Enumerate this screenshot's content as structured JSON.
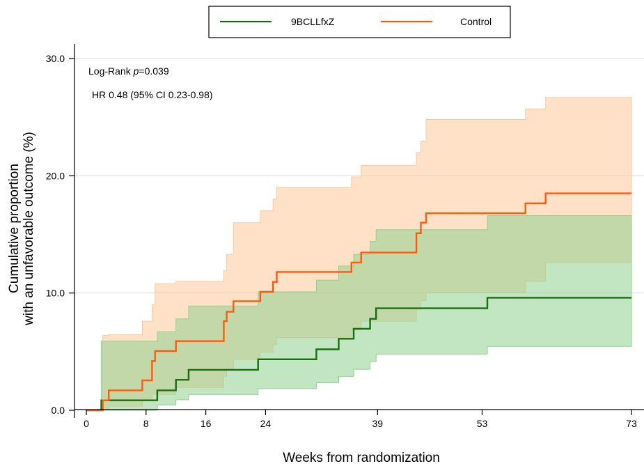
{
  "chart_data": {
    "type": "line",
    "xlabel": "Weeks from randomization",
    "ylabel_line1": "Cumulative proportion",
    "ylabel_line2": "with an unfavorable outcome (%)",
    "xlim": [
      0,
      73
    ],
    "ylim": [
      0,
      30
    ],
    "x_ticks": [
      0,
      8,
      16,
      24,
      39,
      53,
      73
    ],
    "x_tick_labels": [
      "0",
      "8",
      "16",
      "24",
      "39",
      "53",
      "73"
    ],
    "y_ticks": [
      0,
      10,
      20,
      30
    ],
    "y_tick_labels": [
      "0.0",
      "10.0",
      "20.0",
      "30.0"
    ],
    "grid": "horizontal",
    "legend_position": "top",
    "annotations": {
      "logrank_prefix": "Log-Rank ",
      "logrank_p": "p",
      "logrank_value": "=0.039",
      "hr": "HR 0.48 (95% CI 0.23-0.98)"
    },
    "series": [
      {
        "name": "9BCLLfxZ",
        "color": "#1a6e12",
        "band_color": "#8fd18f",
        "points": [
          [
            0,
            0
          ],
          [
            2,
            0
          ],
          [
            2,
            0.85
          ],
          [
            9.5,
            0.85
          ],
          [
            9.5,
            1.7
          ],
          [
            12,
            1.7
          ],
          [
            12,
            2.6
          ],
          [
            13.7,
            2.6
          ],
          [
            13.7,
            3.45
          ],
          [
            23,
            3.45
          ],
          [
            23,
            4.35
          ],
          [
            30.8,
            4.35
          ],
          [
            30.8,
            5.2
          ],
          [
            33.8,
            5.2
          ],
          [
            33.8,
            6.1
          ],
          [
            35.8,
            6.1
          ],
          [
            35.8,
            6.95
          ],
          [
            38,
            6.95
          ],
          [
            38,
            7.8
          ],
          [
            38.8,
            7.8
          ],
          [
            38.8,
            8.7
          ],
          [
            53.7,
            8.7
          ],
          [
            53.7,
            9.6
          ],
          [
            73,
            9.6
          ]
        ],
        "lower": [
          [
            2,
            0
          ],
          [
            9.5,
            0
          ],
          [
            9.5,
            0.45
          ],
          [
            12,
            0.45
          ],
          [
            12,
            0.9
          ],
          [
            13.7,
            0.9
          ],
          [
            13.7,
            1.35
          ],
          [
            23,
            1.35
          ],
          [
            23,
            1.85
          ],
          [
            30.8,
            1.85
          ],
          [
            30.8,
            2.35
          ],
          [
            33.8,
            2.35
          ],
          [
            33.8,
            2.9
          ],
          [
            35.8,
            2.9
          ],
          [
            35.8,
            3.5
          ],
          [
            38,
            3.5
          ],
          [
            38,
            4.15
          ],
          [
            38.8,
            4.15
          ],
          [
            38.8,
            4.8
          ],
          [
            53.7,
            4.8
          ],
          [
            53.7,
            5.45
          ],
          [
            73,
            5.45
          ]
        ],
        "upper": [
          [
            2,
            5.9
          ],
          [
            9.5,
            5.9
          ],
          [
            9.5,
            6.7
          ],
          [
            12,
            6.7
          ],
          [
            12,
            7.8
          ],
          [
            13.7,
            7.8
          ],
          [
            13.7,
            8.9
          ],
          [
            23,
            8.9
          ],
          [
            23,
            10.1
          ],
          [
            30.8,
            10.1
          ],
          [
            30.8,
            11.1
          ],
          [
            33.8,
            11.1
          ],
          [
            33.8,
            12.3
          ],
          [
            35.8,
            12.3
          ],
          [
            35.8,
            13.3
          ],
          [
            38,
            13.3
          ],
          [
            38,
            14.4
          ],
          [
            38.8,
            14.4
          ],
          [
            38.8,
            15.4
          ],
          [
            53.7,
            15.4
          ],
          [
            53.7,
            16.6
          ],
          [
            73,
            16.6
          ]
        ]
      },
      {
        "name": "Control",
        "color": "#ff5a0a",
        "band_color": "#ffc99a",
        "points": [
          [
            0,
            0
          ],
          [
            2.2,
            0
          ],
          [
            2.2,
            0.85
          ],
          [
            3,
            0.85
          ],
          [
            3,
            1.7
          ],
          [
            7.5,
            1.7
          ],
          [
            7.5,
            2.55
          ],
          [
            8.8,
            2.55
          ],
          [
            8.8,
            4.2
          ],
          [
            9.2,
            4.2
          ],
          [
            9.2,
            5.05
          ],
          [
            12,
            5.05
          ],
          [
            12,
            5.9
          ],
          [
            18.4,
            5.9
          ],
          [
            18.4,
            7.6
          ],
          [
            18.8,
            7.6
          ],
          [
            18.8,
            8.4
          ],
          [
            19.7,
            8.4
          ],
          [
            19.7,
            9.3
          ],
          [
            23.3,
            9.3
          ],
          [
            23.3,
            10.1
          ],
          [
            25,
            10.1
          ],
          [
            25,
            10.95
          ],
          [
            25.5,
            10.95
          ],
          [
            25.5,
            11.8
          ],
          [
            35.5,
            11.8
          ],
          [
            35.5,
            12.6
          ],
          [
            36.8,
            12.6
          ],
          [
            36.8,
            13.45
          ],
          [
            44.2,
            13.45
          ],
          [
            44.2,
            15.1
          ],
          [
            44.8,
            15.1
          ],
          [
            44.8,
            16.0
          ],
          [
            45.5,
            16.0
          ],
          [
            45.5,
            16.8
          ],
          [
            58.8,
            16.8
          ],
          [
            58.8,
            17.65
          ],
          [
            61.5,
            17.65
          ],
          [
            61.5,
            18.5
          ],
          [
            73,
            18.5
          ]
        ],
        "lower": [
          [
            2.2,
            0
          ],
          [
            3,
            0
          ],
          [
            3,
            0.35
          ],
          [
            7.5,
            0.35
          ],
          [
            7.5,
            0.8
          ],
          [
            8.8,
            0.8
          ],
          [
            8.8,
            1.35
          ],
          [
            12,
            1.35
          ],
          [
            12,
            1.95
          ],
          [
            18.4,
            1.95
          ],
          [
            18.4,
            2.9
          ],
          [
            18.8,
            2.9
          ],
          [
            18.8,
            3.55
          ],
          [
            19.7,
            3.55
          ],
          [
            19.7,
            4.35
          ],
          [
            23.3,
            4.35
          ],
          [
            23.3,
            4.95
          ],
          [
            25,
            4.95
          ],
          [
            25,
            5.6
          ],
          [
            25.5,
            5.6
          ],
          [
            25.5,
            6.2
          ],
          [
            35.5,
            6.2
          ],
          [
            35.5,
            6.85
          ],
          [
            36.8,
            6.85
          ],
          [
            36.8,
            7.6
          ],
          [
            44.2,
            7.6
          ],
          [
            44.2,
            8.6
          ],
          [
            44.8,
            8.6
          ],
          [
            44.8,
            9.35
          ],
          [
            45.5,
            9.35
          ],
          [
            45.5,
            10.05
          ],
          [
            58.8,
            10.05
          ],
          [
            58.8,
            11.0
          ],
          [
            61.5,
            11.0
          ],
          [
            61.5,
            12.6
          ],
          [
            73,
            12.6
          ]
        ],
        "upper": [
          [
            2.2,
            6.4
          ],
          [
            3,
            6.4
          ],
          [
            3,
            6.45
          ],
          [
            7.5,
            6.45
          ],
          [
            7.5,
            7.6
          ],
          [
            8.8,
            7.6
          ],
          [
            8.8,
            9.0
          ],
          [
            9.2,
            9.0
          ],
          [
            9.2,
            10.8
          ],
          [
            12,
            10.8
          ],
          [
            12,
            11.0
          ],
          [
            18.4,
            11.0
          ],
          [
            18.4,
            11.9
          ],
          [
            18.8,
            11.9
          ],
          [
            18.8,
            13.3
          ],
          [
            19.7,
            13.3
          ],
          [
            19.7,
            16.0
          ],
          [
            23.3,
            16.0
          ],
          [
            23.3,
            17.0
          ],
          [
            25,
            17.0
          ],
          [
            25,
            18.0
          ],
          [
            25.5,
            18.0
          ],
          [
            25.5,
            19.0
          ],
          [
            35.5,
            19.0
          ],
          [
            35.5,
            19.9
          ],
          [
            36.8,
            19.9
          ],
          [
            36.8,
            20.9
          ],
          [
            44.2,
            20.9
          ],
          [
            44.2,
            22.0
          ],
          [
            44.8,
            22.0
          ],
          [
            44.8,
            22.9
          ],
          [
            45.5,
            22.9
          ],
          [
            45.5,
            24.8
          ],
          [
            58.8,
            24.8
          ],
          [
            58.8,
            25.7
          ],
          [
            61.5,
            25.7
          ],
          [
            61.5,
            26.7
          ],
          [
            73,
            26.7
          ]
        ]
      }
    ]
  }
}
